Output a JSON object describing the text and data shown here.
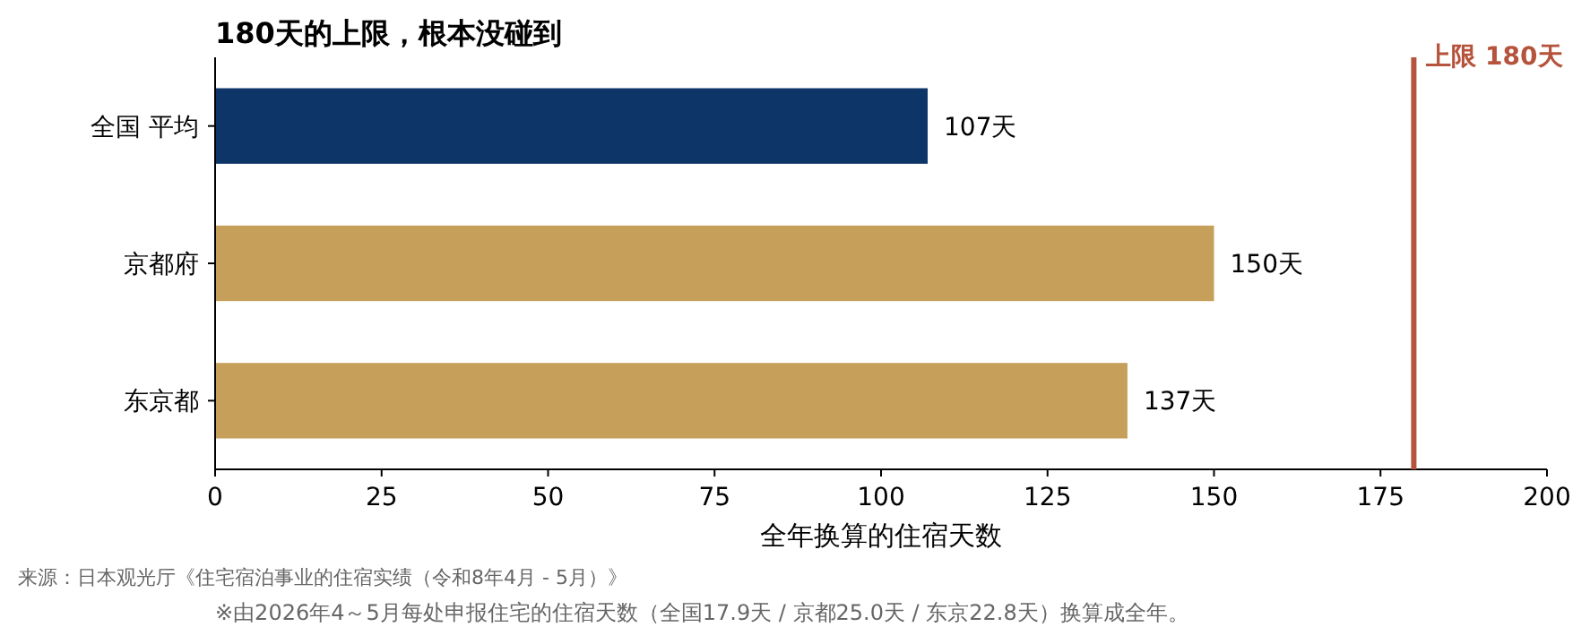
{
  "chart_data": {
    "type": "bar",
    "orientation": "horizontal",
    "title": "180天的上限，根本没碰到",
    "categories": [
      "全国 平均",
      "京都府",
      "东京都"
    ],
    "values": [
      107,
      150,
      137
    ],
    "colors": [
      "#0d3568",
      "#c6a05a",
      "#c6a05a"
    ],
    "value_labels": [
      "107天",
      "150天",
      "137天"
    ],
    "xlabel": "全年换算的住宿天数",
    "xlim": [
      0,
      200
    ],
    "xticks": [
      0,
      25,
      50,
      75,
      100,
      125,
      150,
      175,
      200
    ],
    "ref_lines": [
      {
        "axis": "x",
        "value": 180,
        "label": "上限 180天",
        "color": "#b5533c"
      }
    ],
    "annotations": [
      "来源：日本观光厅《住宅宿泊事业的住宿实绩（令和8年4月 - 5月）》",
      "※由2026年4～5月每处申报住宅的住宿天数（全国17.9天 / 京都25.0天 / 东京22.8天）换算成全年。"
    ],
    "grid": false
  }
}
